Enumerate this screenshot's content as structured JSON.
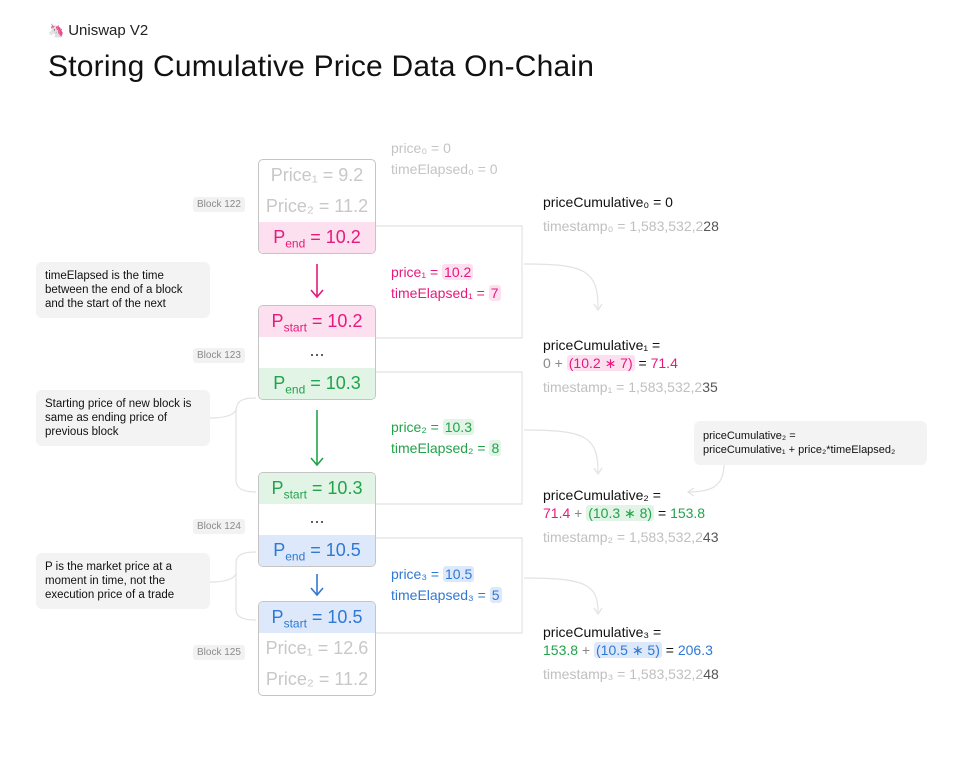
{
  "header": {
    "brand": "Uniswap V2",
    "brand_icon": "unicorn-icon",
    "title": "Storing Cumulative Price Data On-Chain"
  },
  "colors": {
    "pink": "#e6197d",
    "green": "#22a34a",
    "blue": "#2f78d4",
    "gray_text": "#c4c4c4"
  },
  "blocks": [
    {
      "label": "Block 122",
      "rows": [
        "Price₁ = 9.2",
        "Price₂ = 11.2",
        "P",
        "end",
        " = 10.2"
      ]
    },
    {
      "label": "Block 123",
      "p_start": " = 10.2",
      "dots": "...",
      "p_end": " = 10.3"
    },
    {
      "label": "Block 124",
      "p_start": " = 10.3",
      "dots": "...",
      "p_end": " = 10.5"
    },
    {
      "label": "Block 125",
      "p_start": " = 10.5",
      "price1": "Price₁ = 12.6",
      "price2": "Price₂ = 11.2"
    }
  ],
  "block122": {
    "label": "Block 122",
    "price1": "Price₁ = 9.2",
    "price2": "Price₂ = 11.2",
    "p_end": " = 10.2"
  },
  "p_letter": "P",
  "sub_start": "start",
  "sub_end": "end",
  "dots": "...",
  "notes": {
    "time_elapsed": "timeElapsed is the time between the end of a block and the start of the next",
    "starting_price": "Starting price of new block is same as ending price of previous block",
    "market_price": "P is the market price at a moment in time, not the execution price of a trade"
  },
  "initial": {
    "price0": "price₀ = 0",
    "time_elapsed0": "timeElapsed₀ = 0"
  },
  "intervals": [
    {
      "price_label": "price₁ = ",
      "price_value": "10.2",
      "te_label": "timeElapsed₁ = ",
      "te_value": "7"
    },
    {
      "price_label": "price₂ = ",
      "price_value": "10.3",
      "te_label": "timeElapsed₂ = ",
      "te_value": "8"
    },
    {
      "price_label": "price₃ = ",
      "price_value": "10.5",
      "te_label": "timeElapsed₃ = ",
      "te_value": "5"
    }
  ],
  "cumulatives": [
    {
      "label": "priceCumulative₀ = 0",
      "ts_prefix": "timestamp₀ = 1,583,532,2",
      "ts_suffix": "28"
    },
    {
      "label": "priceCumulative₁ = ",
      "prev": "0",
      "plus": " + ",
      "product": "(10.2 ∗ 7)",
      "eq": " = ",
      "result": "71.4",
      "ts_prefix": "timestamp₁ = 1,583,532,2",
      "ts_suffix": "35"
    },
    {
      "label": "priceCumulative₂ = ",
      "prev": "71.4",
      "plus": " + ",
      "product": "(10.3 ∗ 8)",
      "eq": " = ",
      "result": "153.8",
      "ts_prefix": "timestamp₂ = 1,583,532,2",
      "ts_suffix": "43"
    },
    {
      "label": "priceCumulative₃ = ",
      "prev": "153.8",
      "plus": " + ",
      "product": "(10.5 ∗ 5)",
      "eq": " = ",
      "result": "206.3",
      "ts_prefix": "timestamp₃ = 1,583,532,2",
      "ts_suffix": "48"
    }
  ],
  "formula": {
    "line1": "priceCumulative₂ =",
    "line2": "priceCumulative₁ + price₂*timeElapsed₂"
  }
}
